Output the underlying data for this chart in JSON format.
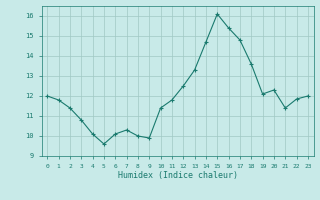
{
  "x": [
    0,
    1,
    2,
    3,
    4,
    5,
    6,
    7,
    8,
    9,
    10,
    11,
    12,
    13,
    14,
    15,
    16,
    17,
    18,
    19,
    20,
    21,
    22,
    23
  ],
  "y": [
    12.0,
    11.8,
    11.4,
    10.8,
    10.1,
    9.6,
    10.1,
    10.3,
    10.0,
    9.9,
    11.4,
    11.8,
    12.5,
    13.3,
    14.7,
    16.1,
    15.4,
    14.8,
    13.6,
    12.1,
    12.3,
    11.4,
    11.85,
    12.0
  ],
  "line_color": "#1a7a6e",
  "marker": "+",
  "marker_size": 3,
  "bg_color": "#c8eae8",
  "grid_color": "#a0c8c4",
  "ylabel_values": [
    9,
    10,
    11,
    12,
    13,
    14,
    15,
    16
  ],
  "xlabel": "Humidex (Indice chaleur)",
  "xlim": [
    -0.5,
    23.5
  ],
  "ylim": [
    9,
    16.5
  ],
  "title": ""
}
